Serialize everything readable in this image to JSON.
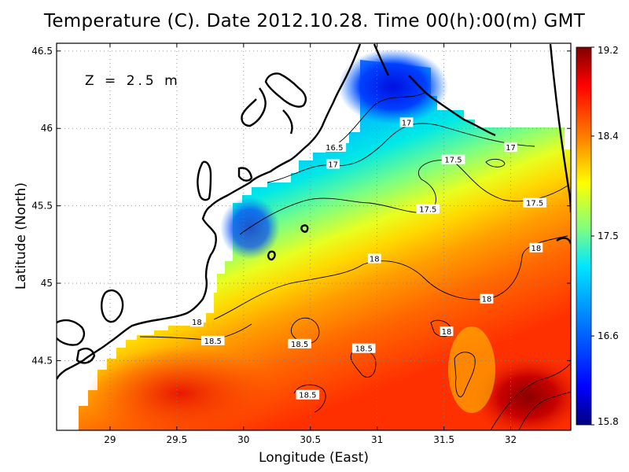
{
  "title": "Temperature (C). Date 2012.10.28. Time 00(h):00(m) GMT",
  "depth_label": "Z = 2.5 m",
  "chart_data": {
    "type": "heatmap",
    "variable": "Temperature",
    "unit": "C",
    "xlabel": "Longitude (East)",
    "ylabel": "Latitude (North)",
    "xlim": [
      28.6,
      32.45
    ],
    "ylim": [
      44.05,
      46.55
    ],
    "x_ticks": [
      "29",
      "29.5",
      "30",
      "30.5",
      "31",
      "31.5",
      "32"
    ],
    "y_ticks": [
      "44.5",
      "45",
      "45.5",
      "46",
      "46.5"
    ],
    "grid": true,
    "colorbar": {
      "min": 15.8,
      "max": 19.2,
      "ticks": [
        "15.8",
        "16.6",
        "17.5",
        "18.4",
        "19.2"
      ],
      "colors": [
        "#000080",
        "#0000ff",
        "#0080ff",
        "#00e5ff",
        "#80ff80",
        "#ffff00",
        "#ff8000",
        "#ff0000",
        "#800000"
      ]
    },
    "contour_labels": [
      {
        "text": "16.5",
        "lon": 30.68,
        "lat": 45.88
      },
      {
        "text": "17",
        "lon": 31.22,
        "lat": 46.04
      },
      {
        "text": "17",
        "lon": 32.0,
        "lat": 45.88
      },
      {
        "text": "17",
        "lon": 30.67,
        "lat": 45.77
      },
      {
        "text": "17.5",
        "lon": 31.57,
        "lat": 45.8
      },
      {
        "text": "17.5",
        "lon": 31.38,
        "lat": 45.48
      },
      {
        "text": "17.5",
        "lon": 32.18,
        "lat": 45.52
      },
      {
        "text": "18",
        "lon": 30.98,
        "lat": 45.16
      },
      {
        "text": "18",
        "lon": 32.19,
        "lat": 45.23
      },
      {
        "text": "18",
        "lon": 31.82,
        "lat": 44.9
      },
      {
        "text": "18",
        "lon": 29.65,
        "lat": 44.75
      },
      {
        "text": "18",
        "lon": 31.52,
        "lat": 44.69
      },
      {
        "text": "18.5",
        "lon": 29.77,
        "lat": 44.63
      },
      {
        "text": "18.5",
        "lon": 30.42,
        "lat": 44.61
      },
      {
        "text": "18.5",
        "lon": 30.9,
        "lat": 44.58
      },
      {
        "text": "18.5",
        "lon": 30.48,
        "lat": 44.28
      }
    ]
  }
}
